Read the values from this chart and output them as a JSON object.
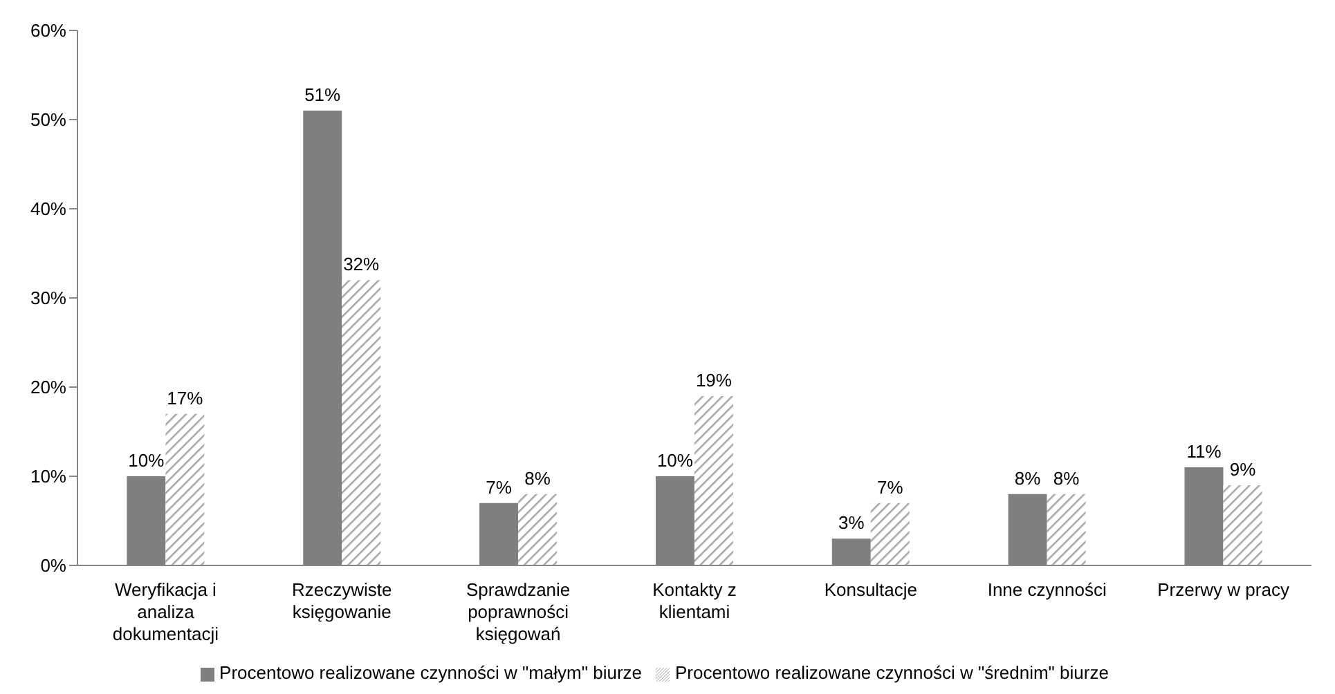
{
  "chart_data": {
    "type": "bar",
    "categories": [
      "Weryfikacja i analiza dokumentacji",
      "Rzeczywiste księgowanie",
      "Sprawdzanie poprawności księgowań",
      "Kontakty z klientami",
      "Konsultacje",
      "Inne czynności",
      "Przerwy w pracy"
    ],
    "series": [
      {
        "name": "Procentowo realizowane czynności w \"małym\" biurze",
        "color": "#7f7f7f",
        "values": [
          10,
          51,
          7,
          10,
          3,
          8,
          11
        ],
        "value_labels": [
          "10%",
          "51%",
          "7%",
          "10%",
          "3%",
          "8%",
          "11%"
        ]
      },
      {
        "name": "Procentowo realizowane czynności w \"średnim\" biurze",
        "color": "#a6a6a6",
        "values": [
          17,
          32,
          8,
          19,
          7,
          8,
          9
        ],
        "value_labels": [
          "17%",
          "32%",
          "8%",
          "19%",
          "7%",
          "8%",
          "9%"
        ]
      }
    ],
    "ylim": [
      0,
      60
    ],
    "yticks": [
      {
        "value": 0,
        "label": "0%"
      },
      {
        "value": 10,
        "label": "10%"
      },
      {
        "value": 20,
        "label": "20%"
      },
      {
        "value": 30,
        "label": "30%"
      },
      {
        "value": 40,
        "label": "40%"
      },
      {
        "value": 50,
        "label": "50%"
      },
      {
        "value": 60,
        "label": "60%"
      }
    ],
    "grid": false,
    "legend": "bottom"
  }
}
